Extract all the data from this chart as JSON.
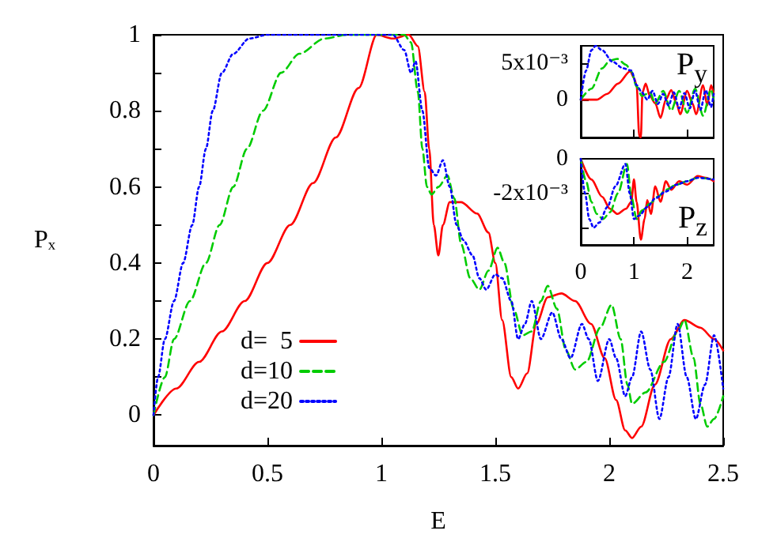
{
  "chart_data": [
    {
      "type": "line",
      "xlabel": "E",
      "ylabel": "Pₓ",
      "xlim": [
        0,
        2.5
      ],
      "ylim": [
        -0.08,
        1
      ],
      "xticks": [
        0,
        0.5,
        1,
        1.5,
        2,
        2.5
      ],
      "yticks": [
        0,
        {
          "value": 0.1,
          "label": null
        },
        0.2,
        {
          "value": 0.3,
          "label": null
        },
        0.4,
        {
          "value": 0.5,
          "label": null
        },
        0.6,
        {
          "value": 0.7,
          "label": null
        },
        0.8,
        {
          "value": 0.9,
          "label": null
        },
        1
      ],
      "legend": "bottom left",
      "series": [
        {
          "name": "d=  5",
          "color": "#ff0000",
          "line_style": "solid",
          "x": [
            0,
            0.1,
            0.2,
            0.3,
            0.4,
            0.5,
            0.6,
            0.7,
            0.8,
            0.9,
            0.98,
            1.05,
            1.12,
            1.16,
            1.19,
            1.21,
            1.23,
            1.25,
            1.27,
            1.3,
            1.35,
            1.42,
            1.47,
            1.5,
            1.53,
            1.57,
            1.6,
            1.64,
            1.68,
            1.73,
            1.79,
            1.85,
            1.92,
            1.98,
            2.03,
            2.07,
            2.1,
            2.14,
            2.2,
            2.27,
            2.33,
            2.4,
            2.46,
            2.5
          ],
          "values": [
            0,
            0.07,
            0.14,
            0.22,
            0.3,
            0.4,
            0.5,
            0.61,
            0.73,
            0.86,
            1,
            0.99,
            1,
            0.97,
            0.85,
            0.7,
            0.5,
            0.42,
            0.5,
            0.56,
            0.56,
            0.53,
            0.48,
            0.4,
            0.25,
            0.1,
            0.07,
            0.11,
            0.24,
            0.31,
            0.32,
            0.3,
            0.24,
            0.15,
            0.04,
            -0.04,
            -0.06,
            -0.03,
            0.08,
            0.2,
            0.25,
            0.23,
            0.2,
            0.17
          ]
        },
        {
          "name": "d=10",
          "color": "#00cc00",
          "line_style": "dashed",
          "x": [
            0,
            0.05,
            0.09,
            0.16,
            0.23,
            0.29,
            0.35,
            0.41,
            0.48,
            0.56,
            0.64,
            0.75,
            0.85,
            1.0,
            1.1,
            1.13,
            1.16,
            1.18,
            1.2,
            1.22,
            1.25,
            1.29,
            1.32,
            1.35,
            1.39,
            1.43,
            1.47,
            1.51,
            1.54,
            1.58,
            1.62,
            1.66,
            1.7,
            1.73,
            1.77,
            1.81,
            1.85,
            1.9,
            1.96,
            2.01,
            2.05,
            2.08,
            2.1,
            2.16,
            2.24,
            2.3,
            2.33,
            2.37,
            2.4,
            2.43,
            2.46,
            2.5
          ],
          "values": [
            0,
            0.1,
            0.2,
            0.3,
            0.4,
            0.5,
            0.6,
            0.7,
            0.8,
            0.9,
            0.95,
            0.99,
            1,
            1,
            1,
            0.98,
            0.85,
            0.7,
            0.6,
            0.58,
            0.6,
            0.63,
            0.57,
            0.45,
            0.36,
            0.33,
            0.38,
            0.44,
            0.4,
            0.28,
            0.21,
            0.22,
            0.3,
            0.34,
            0.28,
            0.17,
            0.12,
            0.14,
            0.23,
            0.29,
            0.2,
            0.08,
            0.03,
            0.06,
            0.14,
            0.22,
            0.25,
            0.15,
            0.03,
            -0.03,
            -0.01,
            0.05
          ]
        },
        {
          "name": "d=20",
          "color": "#0000ff",
          "line_style": "dotted",
          "x": [
            0,
            0.02,
            0.05,
            0.09,
            0.13,
            0.17,
            0.2,
            0.23,
            0.26,
            0.3,
            0.35,
            0.42,
            0.5,
            0.8,
            1.05,
            1.1,
            1.13,
            1.15,
            1.18,
            1.21,
            1.24,
            1.27,
            1.3,
            1.33,
            1.36,
            1.4,
            1.43,
            1.46,
            1.5,
            1.53,
            1.57,
            1.6,
            1.63,
            1.66,
            1.7,
            1.75,
            1.79,
            1.83,
            1.88,
            1.91,
            1.95,
            2.0,
            2.03,
            2.07,
            2.1,
            2.14,
            2.18,
            2.22,
            2.26,
            2.3,
            2.34,
            2.38,
            2.42,
            2.46,
            2.5
          ],
          "values": [
            0,
            0.1,
            0.2,
            0.3,
            0.4,
            0.5,
            0.6,
            0.7,
            0.8,
            0.9,
            0.95,
            0.99,
            1,
            1,
            1,
            0.96,
            0.9,
            0.93,
            0.8,
            0.65,
            0.63,
            0.67,
            0.6,
            0.5,
            0.46,
            0.42,
            0.36,
            0.33,
            0.37,
            0.36,
            0.3,
            0.2,
            0.24,
            0.3,
            0.2,
            0.27,
            0.2,
            0.15,
            0.24,
            0.2,
            0.09,
            0.2,
            0.15,
            0.05,
            0.1,
            0.22,
            0.12,
            -0.01,
            0.1,
            0.24,
            0.1,
            -0.01,
            0.08,
            0.21,
            0.07
          ]
        }
      ]
    },
    {
      "type": "line",
      "ylabel": "P$_{y}$",
      "xlim": [
        0,
        2.5
      ],
      "ylim": [
        -0.0052,
        0.0074
      ],
      "xticks": [
        0,
        1,
        2
      ],
      "yticks": [
        0,
        {
          "value": 0.005,
          "label": "5x10⁻³"
        }
      ],
      "tick_labels": "y",
      "series": [
        {
          "color": "#ff0000",
          "line_style": "solid",
          "x": [
            0,
            0.3,
            0.5,
            0.7,
            0.93,
            1.0,
            1.05,
            1.1,
            1.13,
            1.16,
            1.22,
            1.3,
            1.4,
            1.5,
            1.6,
            1.7,
            1.8,
            1.87,
            2.0,
            2.1,
            2.17,
            2.3,
            2.38,
            2.45,
            2.5
          ],
          "values": [
            0,
            0,
            0.0008,
            0.0022,
            0.0039,
            0.003,
            0.002,
            -0.005,
            -0.0052,
            0.001,
            0.0022,
            0.0005,
            -0.0005,
            -0.0025,
            0.0,
            0.0013,
            -0.0005,
            -0.002,
            0.0012,
            -0.0005,
            -0.002,
            0.002,
            -0.0008,
            0.002,
            0.0008
          ]
        },
        {
          "color": "#00cc00",
          "line_style": "dashed",
          "x": [
            0,
            0.2,
            0.4,
            0.55,
            0.69,
            0.85,
            0.95,
            1.05,
            1.15,
            1.3,
            1.4,
            1.55,
            1.7,
            1.85,
            2.0,
            2.15,
            2.3,
            2.45,
            2.5
          ],
          "values": [
            0,
            0.0015,
            0.0043,
            0.0054,
            0.0056,
            0.0048,
            0.0039,
            0.0018,
            0.0005,
            0.001,
            -0.0005,
            0.0012,
            -0.0015,
            0.0012,
            -0.0018,
            0.0015,
            -0.0022,
            0.0014,
            0.0
          ]
        },
        {
          "color": "#0000ff",
          "line_style": "dotted",
          "x": [
            0,
            0.1,
            0.2,
            0.28,
            0.4,
            0.6,
            0.8,
            0.95,
            1.05,
            1.15,
            1.25,
            1.35,
            1.45,
            1.55,
            1.65,
            1.75,
            1.85,
            1.95,
            2.05,
            2.15,
            2.25,
            2.35,
            2.45,
            2.5
          ],
          "values": [
            0,
            0.004,
            0.0068,
            0.0074,
            0.0068,
            0.0052,
            0.0043,
            0.004,
            0.002,
            0.001,
            0.0,
            0.0012,
            -0.0006,
            0.0008,
            -0.0008,
            0.001,
            -0.0012,
            0.0009,
            -0.0012,
            0.0012,
            -0.0014,
            0.0013,
            -0.001,
            0.0008
          ]
        }
      ]
    },
    {
      "type": "line",
      "ylabel": "P$_{z}$",
      "xlim": [
        0,
        2.5
      ],
      "ylim": [
        -0.005,
        0
      ],
      "xticks": [
        0,
        1,
        2
      ],
      "yticks": [
        0,
        {
          "value": -0.002,
          "label": "-2x10⁻³"
        },
        {
          "value": -0.004,
          "label": null
        }
      ],
      "series": [
        {
          "color": "#ff0000",
          "line_style": "solid",
          "x": [
            0,
            0.2,
            0.4,
            0.55,
            0.69,
            0.85,
            0.95,
            1.0,
            1.05,
            1.13,
            1.2,
            1.25,
            1.32,
            1.4,
            1.5,
            1.6,
            1.7,
            1.85,
            2.0,
            2.2,
            2.35,
            2.5
          ],
          "values": [
            0,
            -0.0012,
            -0.0022,
            -0.0029,
            -0.0032,
            -0.0029,
            -0.0025,
            -0.0012,
            -0.0025,
            -0.0047,
            -0.0035,
            -0.0024,
            -0.0032,
            -0.0016,
            -0.0025,
            -0.0013,
            -0.0018,
            -0.0013,
            -0.0015,
            -0.001,
            -0.0011,
            -0.0013
          ]
        },
        {
          "color": "#00cc00",
          "line_style": "dashed",
          "x": [
            0,
            0.1,
            0.2,
            0.3,
            0.42,
            0.55,
            0.7,
            0.87,
            0.95,
            1.05,
            1.15,
            1.3,
            1.45,
            1.6,
            1.8,
            2.0,
            2.2,
            2.5
          ],
          "values": [
            0,
            -0.0013,
            -0.0025,
            -0.0032,
            -0.0035,
            -0.0031,
            -0.002,
            -0.0003,
            -0.0022,
            -0.0035,
            -0.003,
            -0.0026,
            -0.0022,
            -0.0018,
            -0.0015,
            -0.0013,
            -0.0011,
            -0.0012
          ]
        },
        {
          "color": "#0000ff",
          "line_style": "dotted",
          "x": [
            0,
            0.08,
            0.16,
            0.24,
            0.35,
            0.5,
            0.65,
            0.84,
            0.92,
            1.0,
            1.1,
            1.25,
            1.4,
            1.6,
            1.8,
            2.0,
            2.2,
            2.5
          ],
          "values": [
            0,
            -0.002,
            -0.0035,
            -0.004,
            -0.0037,
            -0.0028,
            -0.0016,
            -0.0003,
            -0.002,
            -0.0035,
            -0.0033,
            -0.0028,
            -0.0023,
            -0.0019,
            -0.0015,
            -0.0013,
            -0.0011,
            -0.0012
          ]
        }
      ]
    }
  ]
}
